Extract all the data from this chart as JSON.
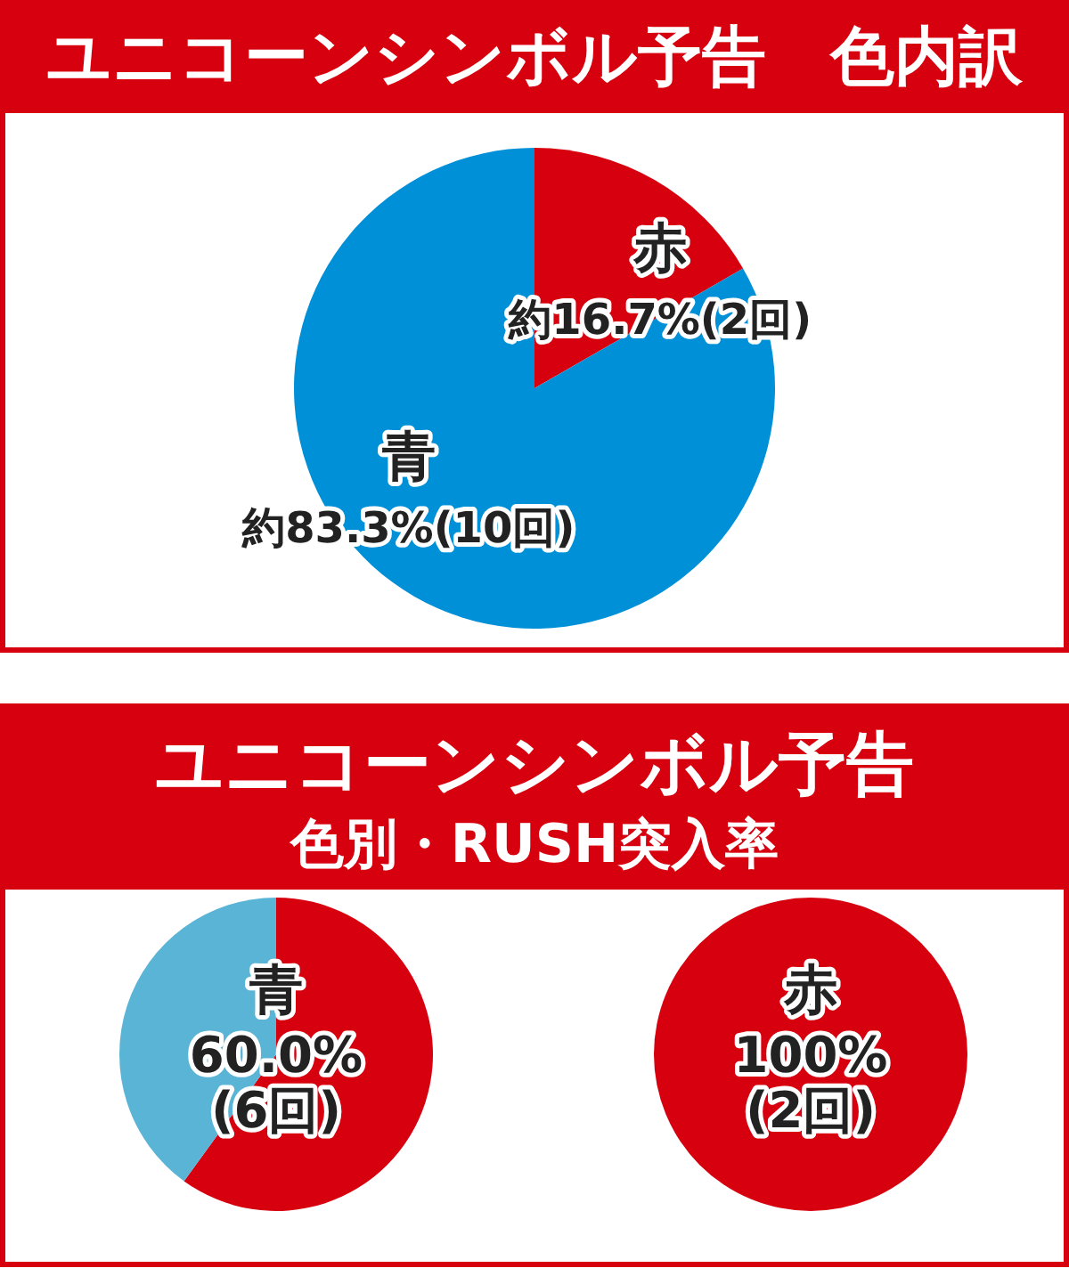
{
  "chart_data": [
    {
      "type": "pie",
      "title": "ユニコーンシンボル予告　色内訳",
      "categories": [
        "赤",
        "青"
      ],
      "values": [
        16.7,
        83.3
      ],
      "colors": [
        "#d7000f",
        "#0090d8"
      ],
      "value_labels": [
        "約16.7%(2回)",
        "約83.3%(10回)"
      ]
    },
    {
      "type": "pie",
      "title": "ユニコーンシンボル予告",
      "subtitle": "色別・RUSH突入率",
      "categories": [
        null,
        null
      ],
      "values": [
        60,
        40
      ],
      "colors": [
        "#d7000f",
        "#5ab4d6"
      ],
      "value_labels": [
        "60.0%\n(6回)",
        null
      ],
      "annotations": [
        "青"
      ]
    },
    {
      "type": "pie",
      "categories": [
        null
      ],
      "values": [
        100
      ],
      "colors": [
        "#d7000f"
      ],
      "value_labels": [
        "100%\n(2回)"
      ],
      "annotations": [
        "赤"
      ]
    }
  ]
}
